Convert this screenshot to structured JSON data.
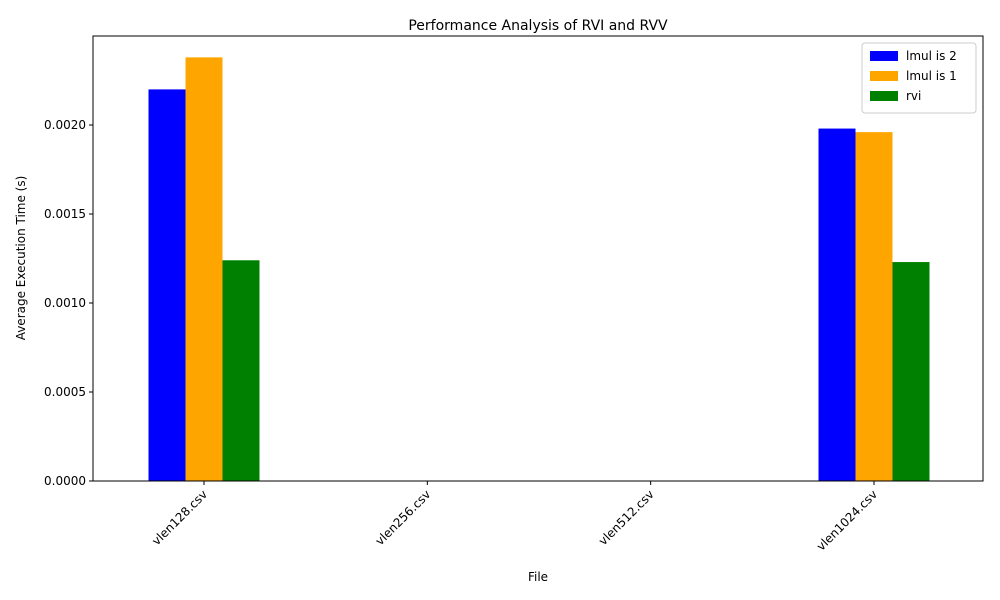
{
  "chart_data": {
    "type": "bar",
    "title": "Performance Analysis of RVI and RVV",
    "xlabel": "File",
    "ylabel": "Average Execution Time (s)",
    "categories": [
      "vlen128.csv",
      "vlen256.csv",
      "vlen512.csv",
      "vlen1024.csv"
    ],
    "series": [
      {
        "name": "lmul is 2",
        "color": "#0000ff",
        "values": [
          0.0022,
          null,
          null,
          0.00198
        ]
      },
      {
        "name": "lmul is 1",
        "color": "#ffa500",
        "values": [
          0.00238,
          null,
          null,
          0.00196
        ]
      },
      {
        "name": "rvi",
        "color": "#008000",
        "values": [
          0.00124,
          null,
          null,
          0.00123
        ]
      }
    ],
    "yticks": [
      0.0,
      0.0005,
      0.001,
      0.0015,
      0.002
    ],
    "ytick_labels": [
      "0.0000",
      "0.0005",
      "0.0010",
      "0.0015",
      "0.0020"
    ],
    "ylim": [
      0,
      0.0025
    ],
    "xtick_rotation": 45,
    "legend_position": "top-right",
    "grid": false
  }
}
